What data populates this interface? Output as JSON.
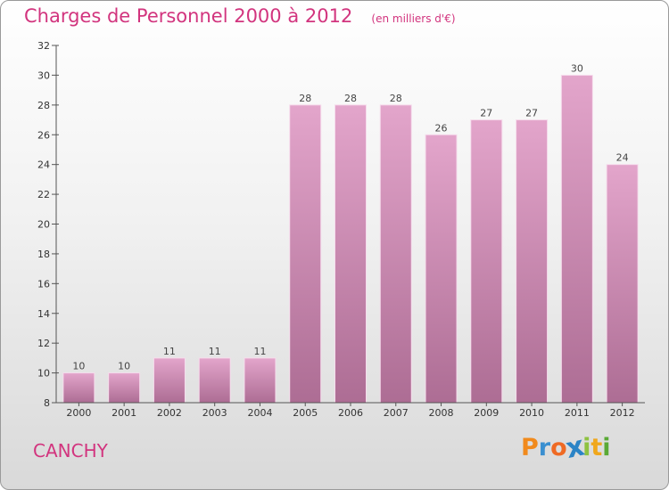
{
  "chart_data": {
    "type": "bar",
    "title": "Charges de Personnel 2000 à 2012",
    "unit_note": "(en milliers d'€)",
    "categories": [
      "2000",
      "2001",
      "2002",
      "2003",
      "2004",
      "2005",
      "2006",
      "2007",
      "2008",
      "2009",
      "2010",
      "2011",
      "2012"
    ],
    "values": [
      10,
      10,
      11,
      11,
      11,
      28,
      28,
      28,
      26,
      27,
      27,
      30,
      24
    ],
    "ylim": [
      8,
      32
    ],
    "yticks": [
      8,
      10,
      12,
      14,
      16,
      18,
      20,
      22,
      24,
      26,
      28,
      30,
      32
    ],
    "grid": false,
    "bar_color_top": "#e3a5cb",
    "bar_color_bottom": "#ad6d94"
  },
  "footer": {
    "commune": "CANCHY",
    "logo_letters": [
      "P",
      "r",
      "o",
      "x",
      "i",
      "t",
      "i"
    ],
    "logo_colors": [
      "#f18a1c",
      "#3a8fd0",
      "#ef6a24",
      "#2b84c6",
      "#8ec241",
      "#f0a71c",
      "#5aa935"
    ]
  },
  "colors": {
    "accent": "#d2347e",
    "axis": "#555555"
  }
}
